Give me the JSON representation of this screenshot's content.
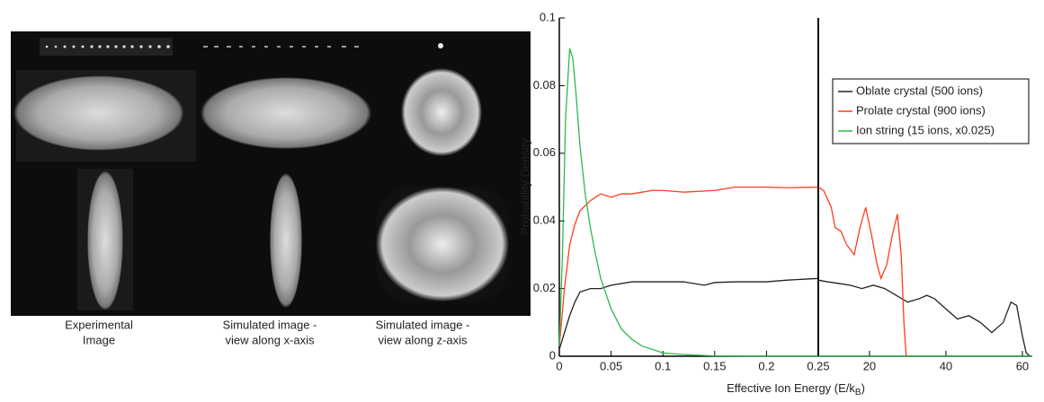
{
  "panel": {
    "captions": [
      [
        "Experimental",
        "Image"
      ],
      [
        "Simulated image -",
        "view along x-axis"
      ],
      [
        "Simulated image -",
        "view along z-axis"
      ]
    ]
  },
  "chart_data": [
    {
      "type": "line",
      "ylabel": "Probability Density",
      "xlabel": "Effective Ion Energy (E/k",
      "xlabel_sub": "B",
      "xlabel_end": ")",
      "xlim": [
        0,
        0.25
      ],
      "xticks": [
        0,
        0.05,
        0.1,
        0.15,
        0.2,
        0.25
      ],
      "ylim": [
        0,
        0.1
      ],
      "yticks": [
        0,
        0.02,
        0.04,
        0.06,
        0.08,
        0.1
      ],
      "series": [
        {
          "color": "#222222",
          "x": [
            0,
            0.005,
            0.01,
            0.015,
            0.02,
            0.03,
            0.04,
            0.05,
            0.07,
            0.09,
            0.1,
            0.12,
            0.14,
            0.15,
            0.17,
            0.2,
            0.22,
            0.25
          ],
          "values": [
            0.002,
            0.007,
            0.012,
            0.016,
            0.019,
            0.02,
            0.02,
            0.021,
            0.022,
            0.022,
            0.022,
            0.022,
            0.021,
            0.0218,
            0.022,
            0.022,
            0.0225,
            0.023
          ]
        },
        {
          "color": "#ff3b1f",
          "x": [
            0,
            0.005,
            0.01,
            0.015,
            0.02,
            0.03,
            0.04,
            0.05,
            0.06,
            0.07,
            0.09,
            0.1,
            0.12,
            0.15,
            0.17,
            0.2,
            0.22,
            0.25
          ],
          "values": [
            0.003,
            0.02,
            0.033,
            0.039,
            0.043,
            0.046,
            0.048,
            0.047,
            0.048,
            0.048,
            0.049,
            0.049,
            0.0485,
            0.049,
            0.05,
            0.05,
            0.0498,
            0.05
          ]
        },
        {
          "color": "#2eb84a",
          "x": [
            0,
            0.003,
            0.006,
            0.01,
            0.013,
            0.016,
            0.02,
            0.025,
            0.03,
            0.035,
            0.04,
            0.05,
            0.06,
            0.07,
            0.08,
            0.1,
            0.12,
            0.15,
            0.2,
            0.25
          ],
          "values": [
            0.003,
            0.03,
            0.07,
            0.091,
            0.088,
            0.078,
            0.062,
            0.048,
            0.038,
            0.03,
            0.023,
            0.014,
            0.008,
            0.005,
            0.003,
            0.001,
            0.0005,
            0.0001,
            0,
            0
          ]
        }
      ]
    },
    {
      "type": "line",
      "xlim": [
        6.6,
        62.6
      ],
      "xticks": [
        20,
        40,
        60
      ],
      "ylim": [
        0,
        0.1
      ],
      "legend": "upper right",
      "series": [
        {
          "name": "Oblate crystal (500 ions)",
          "color": "#222222",
          "x": [
            6.6,
            9,
            12,
            15,
            18,
            21,
            24,
            27,
            30,
            33,
            35,
            37,
            40,
            43,
            46,
            49,
            52,
            55,
            57,
            58.5,
            60,
            61,
            62
          ],
          "values": [
            0.0225,
            0.022,
            0.0215,
            0.021,
            0.02,
            0.021,
            0.02,
            0.018,
            0.016,
            0.017,
            0.018,
            0.017,
            0.014,
            0.011,
            0.012,
            0.01,
            0.007,
            0.01,
            0.016,
            0.015,
            0.006,
            0.001,
            0
          ]
        },
        {
          "name": "Prolate crystal (900 ions)",
          "color": "#ff3b1f",
          "x": [
            6.6,
            8,
            10,
            11,
            12.5,
            14,
            16,
            17.5,
            19,
            20.5,
            22,
            23,
            24.5,
            26,
            27.3,
            28.3,
            29,
            29.6,
            31
          ],
          "values": [
            0.05,
            0.049,
            0.044,
            0.038,
            0.037,
            0.033,
            0.03,
            0.038,
            0.044,
            0.036,
            0.027,
            0.023,
            0.027,
            0.036,
            0.042,
            0.03,
            0.01,
            0,
            0
          ]
        },
        {
          "name": "Ion string (15 ions, x0.025)",
          "color": "#2eb84a",
          "x": [
            6.6,
            62.6
          ],
          "values": [
            0,
            0
          ]
        }
      ]
    }
  ]
}
